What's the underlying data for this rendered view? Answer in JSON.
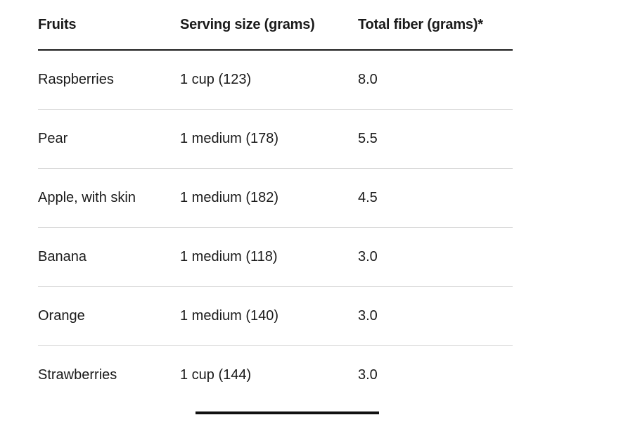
{
  "table": {
    "headers": [
      "Fruits",
      "Serving size (grams)",
      "Total fiber (grams)*"
    ],
    "rows": [
      [
        "Raspberries",
        "1 cup (123)",
        "8.0"
      ],
      [
        "Pear",
        "1 medium (178)",
        "5.5"
      ],
      [
        "Apple, with skin",
        "1 medium (182)",
        "4.5"
      ],
      [
        "Banana",
        "1 medium (118)",
        "3.0"
      ],
      [
        "Orange",
        "1 medium (140)",
        "3.0"
      ],
      [
        "Strawberries",
        "1 cup (144)",
        "3.0"
      ]
    ]
  }
}
